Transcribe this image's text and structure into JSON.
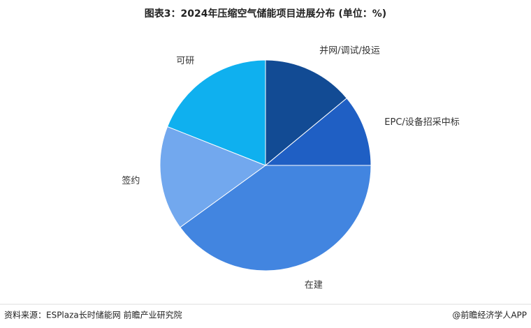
{
  "chart_data": {
    "type": "pie",
    "title": "图表3：2024年压缩空气储能项目进展分布 (单位：%)",
    "categories": [
      "并网/调试/投运",
      "EPC/设备招采中标",
      "在建",
      "签约",
      "可研"
    ],
    "values": [
      14,
      11,
      40,
      16,
      19
    ],
    "colors": [
      "#124b94",
      "#1f5fc4",
      "#4285e0",
      "#72a8ee",
      "#0fb0ef"
    ],
    "source": "资料来源：ESPlaza长时储能网 前瞻产业研究院",
    "credit": "@前瞻经济学人APP"
  }
}
